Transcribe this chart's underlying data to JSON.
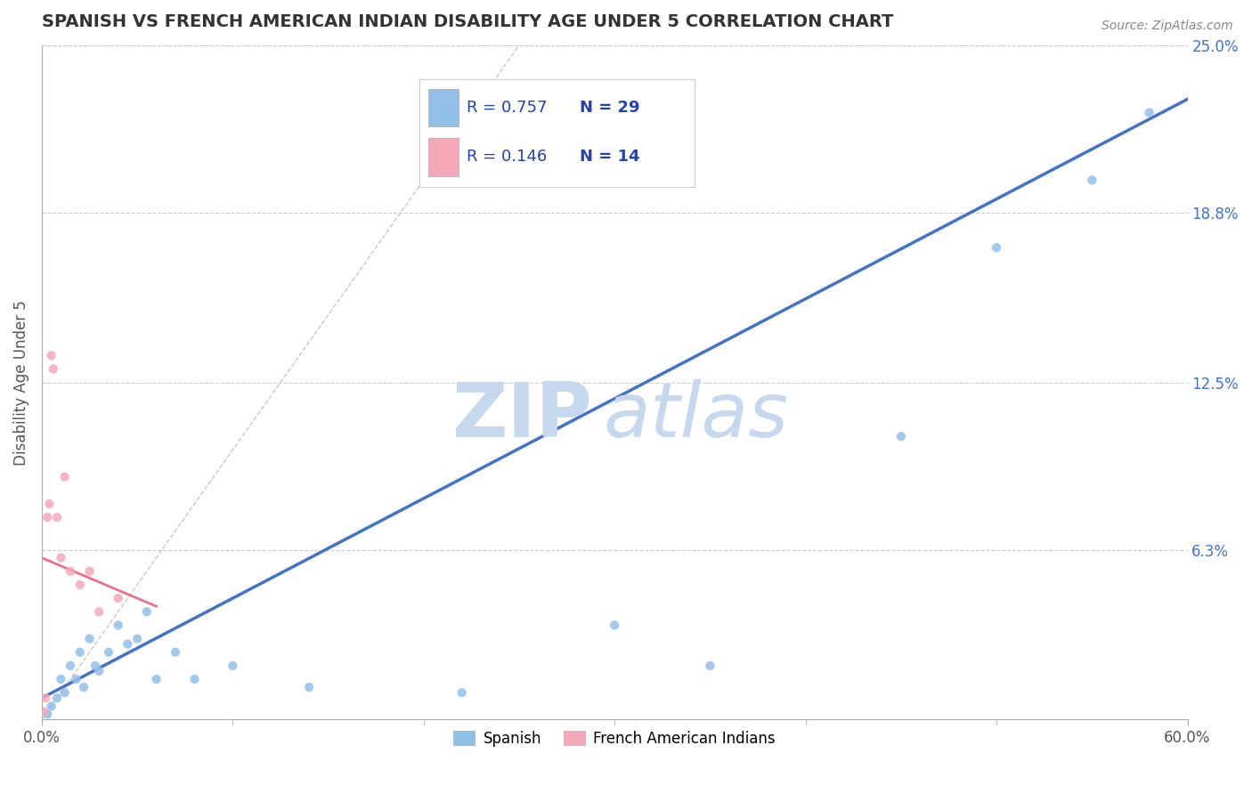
{
  "title": "SPANISH VS FRENCH AMERICAN INDIAN DISABILITY AGE UNDER 5 CORRELATION CHART",
  "source": "Source: ZipAtlas.com",
  "ylabel": "Disability Age Under 5",
  "xlim": [
    0.0,
    60.0
  ],
  "ylim": [
    0.0,
    25.0
  ],
  "xtick_major": [
    0.0,
    60.0
  ],
  "xtick_major_labels": [
    "0.0%",
    "60.0%"
  ],
  "xtick_minor": [
    10.0,
    20.0,
    30.0,
    40.0,
    50.0
  ],
  "yticks_right": [
    6.3,
    12.5,
    18.8,
    25.0
  ],
  "ytick_labels_right": [
    "6.3%",
    "12.5%",
    "18.8%",
    "25.0%"
  ],
  "spanish_x": [
    0.3,
    0.5,
    0.8,
    1.0,
    1.2,
    1.5,
    1.8,
    2.0,
    2.2,
    2.5,
    2.8,
    3.0,
    3.5,
    4.0,
    4.5,
    5.0,
    5.5,
    6.0,
    7.0,
    8.0,
    10.0,
    14.0,
    22.0,
    30.0,
    35.0,
    45.0,
    50.0,
    55.0,
    58.0
  ],
  "spanish_y": [
    0.2,
    0.5,
    0.8,
    1.5,
    1.0,
    2.0,
    1.5,
    2.5,
    1.2,
    3.0,
    2.0,
    1.8,
    2.5,
    3.5,
    2.8,
    3.0,
    4.0,
    1.5,
    2.5,
    1.5,
    2.0,
    1.2,
    1.0,
    3.5,
    2.0,
    10.5,
    17.5,
    20.0,
    22.5
  ],
  "french_x": [
    0.1,
    0.2,
    0.3,
    0.4,
    0.5,
    0.6,
    0.8,
    1.0,
    1.2,
    1.5,
    2.0,
    2.5,
    3.0,
    4.0
  ],
  "french_y": [
    0.3,
    0.8,
    7.5,
    8.0,
    13.5,
    13.0,
    7.5,
    6.0,
    9.0,
    5.5,
    5.0,
    5.5,
    4.0,
    4.5
  ],
  "spanish_color": "#92C0E8",
  "french_color": "#F4A8BA",
  "spanish_line_color": "#4472C4",
  "french_line_color": "#E8708A",
  "diagonal_color": "#C8C8C8",
  "R_spanish": 0.757,
  "N_spanish": 29,
  "R_french": 0.146,
  "N_french": 14,
  "watermark_zip": "ZIP",
  "watermark_atlas": "atlas",
  "watermark_color": "#C5D8EE",
  "legend_label_spanish": "Spanish",
  "legend_label_french": "French American Indians",
  "background_color": "#FFFFFF",
  "legend_box_color": "#E8E8E8",
  "legend_R_color": "#2244AA",
  "legend_N_color": "#2244AA",
  "spanish_reg_intercept": 0.8,
  "spanish_reg_slope": 0.37,
  "french_reg_intercept": 6.0,
  "french_reg_slope": -0.3
}
